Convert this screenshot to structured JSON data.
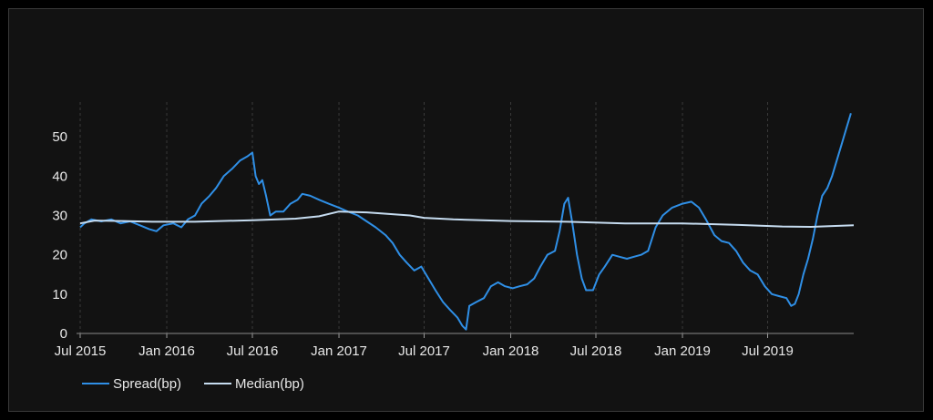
{
  "chart_data": {
    "type": "line",
    "title": "",
    "xlabel": "",
    "ylabel": "",
    "x_range": [
      "2015-07-01",
      "2019-12-31"
    ],
    "ylim": [
      0,
      57
    ],
    "yticks": [
      0,
      10,
      20,
      30,
      40,
      50
    ],
    "xticks": [
      {
        "date": "2015-07-01",
        "label": "Jul 2015"
      },
      {
        "date": "2016-01-01",
        "label": "Jan 2016"
      },
      {
        "date": "2016-07-01",
        "label": "Jul 2016"
      },
      {
        "date": "2017-01-01",
        "label": "Jan 2017"
      },
      {
        "date": "2017-07-01",
        "label": "Jul 2017"
      },
      {
        "date": "2018-01-01",
        "label": "Jan 2018"
      },
      {
        "date": "2018-07-01",
        "label": "Jul 2018"
      },
      {
        "date": "2019-01-01",
        "label": "Jan 2019"
      },
      {
        "date": "2019-07-01",
        "label": "Jul 2019"
      }
    ],
    "grid": "vertical-dashed",
    "legend_position": "bottom-left",
    "series": [
      {
        "name": "Spread(bp)",
        "color": "#2f8fe6",
        "points": [
          [
            "2015-07-01",
            27
          ],
          [
            "2015-07-10",
            28
          ],
          [
            "2015-07-25",
            29
          ],
          [
            "2015-08-15",
            28.5
          ],
          [
            "2015-09-05",
            29
          ],
          [
            "2015-09-25",
            28
          ],
          [
            "2015-10-15",
            28.5
          ],
          [
            "2015-11-05",
            27.5
          ],
          [
            "2015-11-25",
            26.5
          ],
          [
            "2015-12-10",
            26
          ],
          [
            "2015-12-25",
            27.5
          ],
          [
            "2016-01-15",
            28
          ],
          [
            "2016-02-01",
            27
          ],
          [
            "2016-02-15",
            29
          ],
          [
            "2016-03-01",
            30
          ],
          [
            "2016-03-15",
            33
          ],
          [
            "2016-04-01",
            35
          ],
          [
            "2016-04-15",
            37
          ],
          [
            "2016-05-01",
            40
          ],
          [
            "2016-05-20",
            42
          ],
          [
            "2016-06-05",
            44
          ],
          [
            "2016-06-20",
            45
          ],
          [
            "2016-07-01",
            46
          ],
          [
            "2016-07-08",
            40
          ],
          [
            "2016-07-15",
            38
          ],
          [
            "2016-07-22",
            39
          ],
          [
            "2016-07-30",
            35
          ],
          [
            "2016-08-08",
            30
          ],
          [
            "2016-08-20",
            31
          ],
          [
            "2016-09-05",
            31
          ],
          [
            "2016-09-20",
            33
          ],
          [
            "2016-10-05",
            34
          ],
          [
            "2016-10-15",
            35.5
          ],
          [
            "2016-11-01",
            35
          ],
          [
            "2016-11-20",
            34
          ],
          [
            "2016-12-10",
            33
          ],
          [
            "2017-01-01",
            32
          ],
          [
            "2017-01-20",
            31
          ],
          [
            "2017-02-10",
            30
          ],
          [
            "2017-03-01",
            28.5
          ],
          [
            "2017-03-20",
            27
          ],
          [
            "2017-04-10",
            25
          ],
          [
            "2017-04-25",
            23
          ],
          [
            "2017-05-10",
            20
          ],
          [
            "2017-05-25",
            18
          ],
          [
            "2017-06-10",
            16
          ],
          [
            "2017-06-25",
            17
          ],
          [
            "2017-07-10",
            14
          ],
          [
            "2017-07-25",
            11
          ],
          [
            "2017-08-10",
            8
          ],
          [
            "2017-08-25",
            6
          ],
          [
            "2017-09-10",
            4
          ],
          [
            "2017-09-20",
            2
          ],
          [
            "2017-09-28",
            1
          ],
          [
            "2017-10-05",
            7
          ],
          [
            "2017-10-20",
            8
          ],
          [
            "2017-11-05",
            9
          ],
          [
            "2017-11-20",
            12
          ],
          [
            "2017-12-05",
            13
          ],
          [
            "2017-12-20",
            12
          ],
          [
            "2018-01-05",
            11.5
          ],
          [
            "2018-01-20",
            12
          ],
          [
            "2018-02-05",
            12.5
          ],
          [
            "2018-02-20",
            14
          ],
          [
            "2018-03-05",
            17
          ],
          [
            "2018-03-20",
            20
          ],
          [
            "2018-04-05",
            21
          ],
          [
            "2018-04-15",
            26
          ],
          [
            "2018-04-25",
            33
          ],
          [
            "2018-05-03",
            34.5
          ],
          [
            "2018-05-12",
            28
          ],
          [
            "2018-05-22",
            20
          ],
          [
            "2018-06-01",
            14
          ],
          [
            "2018-06-10",
            11
          ],
          [
            "2018-06-25",
            11
          ],
          [
            "2018-07-08",
            15
          ],
          [
            "2018-07-20",
            17
          ],
          [
            "2018-08-05",
            20
          ],
          [
            "2018-08-20",
            19.5
          ],
          [
            "2018-09-05",
            19
          ],
          [
            "2018-09-20",
            19.5
          ],
          [
            "2018-10-05",
            20
          ],
          [
            "2018-10-20",
            21
          ],
          [
            "2018-11-05",
            27
          ],
          [
            "2018-11-20",
            30
          ],
          [
            "2018-12-10",
            32
          ],
          [
            "2019-01-01",
            33
          ],
          [
            "2019-01-20",
            33.5
          ],
          [
            "2019-02-05",
            32
          ],
          [
            "2019-02-20",
            29
          ],
          [
            "2019-03-10",
            25
          ],
          [
            "2019-03-25",
            23.5
          ],
          [
            "2019-04-10",
            23
          ],
          [
            "2019-04-25",
            21
          ],
          [
            "2019-05-10",
            18
          ],
          [
            "2019-05-25",
            16
          ],
          [
            "2019-06-10",
            15
          ],
          [
            "2019-06-25",
            12
          ],
          [
            "2019-07-10",
            10
          ],
          [
            "2019-07-25",
            9.5
          ],
          [
            "2019-08-10",
            9
          ],
          [
            "2019-08-20",
            7
          ],
          [
            "2019-08-28",
            7.5
          ],
          [
            "2019-09-05",
            10
          ],
          [
            "2019-09-15",
            15
          ],
          [
            "2019-09-25",
            19
          ],
          [
            "2019-10-05",
            24
          ],
          [
            "2019-10-15",
            30
          ],
          [
            "2019-10-25",
            35
          ],
          [
            "2019-11-05",
            37
          ],
          [
            "2019-11-15",
            40
          ],
          [
            "2019-11-25",
            44
          ],
          [
            "2019-12-05",
            48
          ],
          [
            "2019-12-15",
            52
          ],
          [
            "2019-12-25",
            56
          ]
        ]
      },
      {
        "name": "Median(bp)",
        "color": "#c6dcf0",
        "points": [
          [
            "2015-07-01",
            28
          ],
          [
            "2015-08-01",
            28.7
          ],
          [
            "2015-10-01",
            28.6
          ],
          [
            "2015-12-01",
            28.4
          ],
          [
            "2016-03-01",
            28.4
          ],
          [
            "2016-07-01",
            28.8
          ],
          [
            "2016-10-01",
            29.2
          ],
          [
            "2016-11-20",
            29.8
          ],
          [
            "2017-01-01",
            31
          ],
          [
            "2017-03-01",
            30.8
          ],
          [
            "2017-06-01",
            30
          ],
          [
            "2017-07-01",
            29.4
          ],
          [
            "2017-09-01",
            29
          ],
          [
            "2018-01-01",
            28.6
          ],
          [
            "2018-05-01",
            28.4
          ],
          [
            "2018-09-01",
            28
          ],
          [
            "2019-01-01",
            28
          ],
          [
            "2019-05-01",
            27.6
          ],
          [
            "2019-08-01",
            27.2
          ],
          [
            "2019-10-01",
            27.1
          ],
          [
            "2019-12-31",
            27.5
          ]
        ]
      }
    ]
  }
}
